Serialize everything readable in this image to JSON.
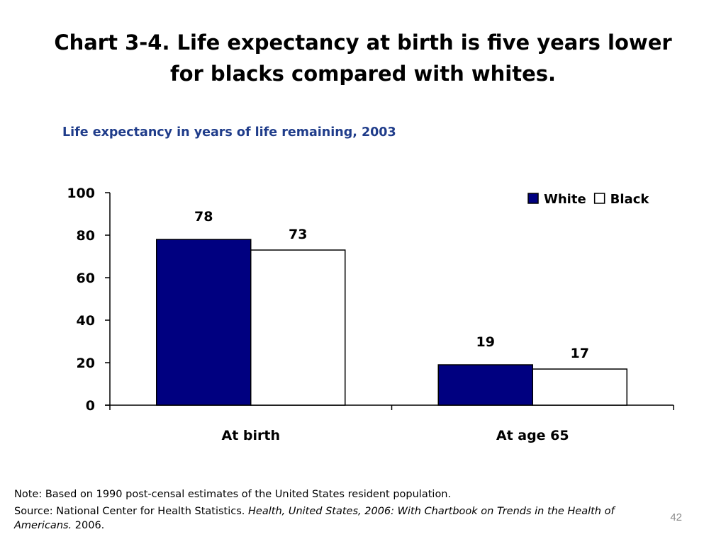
{
  "slide": {
    "title_line1": "Chart 3-4. Life expectancy at birth is five years lower",
    "title_line2": "for blacks compared with whites.",
    "page_number": "42"
  },
  "notes": {
    "note": "Note: Based on 1990 post-censal estimates of the United States resident population.",
    "source_prefix": "Source: National Center for Health Statistics.",
    "source_title": "Health, United States, 2006: With Chartbook on Trends in the Health of Americans.",
    "source_suffix": "2006."
  },
  "chart_data": {
    "type": "bar",
    "title": "Life expectancy in years of life remaining, 2003",
    "categories": [
      "At birth",
      "At age 65"
    ],
    "series": [
      {
        "name": "White",
        "values": [
          78,
          19
        ],
        "data_labels": [
          "78",
          "19"
        ],
        "color": "#000080"
      },
      {
        "name": "Black",
        "values": [
          73,
          17
        ],
        "data_labels": [
          "73",
          "17"
        ],
        "color": "#ffffff"
      }
    ],
    "ylim": [
      0,
      100
    ],
    "yticks": [
      0,
      20,
      40,
      60,
      80,
      100
    ],
    "xlabel": "",
    "ylabel": "",
    "legend_position": "top-right",
    "grid": false
  }
}
